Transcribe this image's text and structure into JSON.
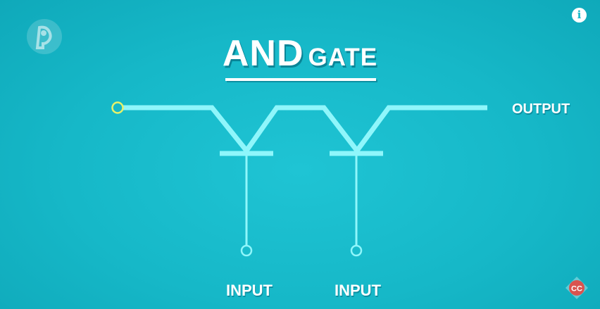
{
  "title": {
    "main": "AND",
    "sub": "GATE"
  },
  "labels": {
    "output": "OUTPUT",
    "input_1": "INPUT",
    "input_2": "INPUT"
  },
  "icons": {
    "top_left": "pbs-logo-icon",
    "top_right": "info-icon",
    "bottom_right": "crash-course-logo-icon"
  },
  "info_glyph": "i",
  "cc_text": "CC",
  "colors": {
    "background": "#16b8c8",
    "wire": "#8ff6fb",
    "input_node": "#e7f26a",
    "text": "#ffffff",
    "cc_badge": "#d9534f"
  }
}
